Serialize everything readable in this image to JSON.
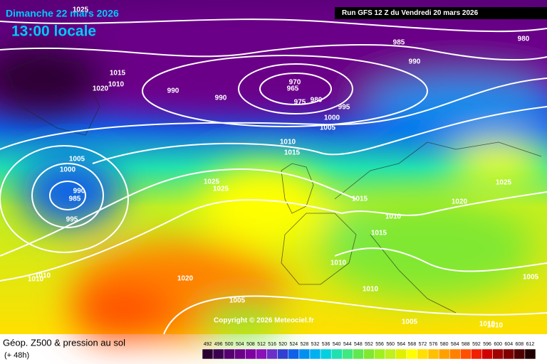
{
  "header": {
    "date": "Dimanche 22 mars 2026",
    "time": "13:00 locale",
    "run": "Run GFS 12 Z du Vendredi 20 mars 2026"
  },
  "map": {
    "isobar_labels": [
      1025,
      985,
      980,
      990,
      1015,
      1010,
      1020,
      990,
      990,
      970,
      965,
      980,
      975,
      995,
      1000,
      1005,
      1010,
      1015,
      1005,
      1000,
      990,
      985,
      995,
      1025,
      1025,
      1025,
      1015,
      1020,
      1010,
      1015,
      1010,
      1010,
      1010,
      1020,
      1010,
      1005,
      1005,
      1005,
      1010,
      1010
    ]
  },
  "copyright": "Copyright © 2026 Meteociel.fr",
  "legend": {
    "title": "Géop. Z500 & pression au sol",
    "lead": "(+ 48h)",
    "scale": [
      492,
      496,
      500,
      504,
      508,
      512,
      516,
      520,
      524,
      528,
      532,
      536,
      540,
      544,
      548,
      552,
      556,
      560,
      564,
      568,
      572,
      576,
      580,
      584,
      588,
      592,
      596,
      600,
      604,
      608,
      612
    ],
    "colors": [
      "#2a0030",
      "#3c0050",
      "#55006e",
      "#6a0087",
      "#7d00a0",
      "#8a10b8",
      "#6a30c8",
      "#3040d0",
      "#1060e8",
      "#0090f0",
      "#00b0f0",
      "#00d0e0",
      "#20e0b0",
      "#40e880",
      "#60e850",
      "#80e830",
      "#a0f020",
      "#c0f020",
      "#e0f000",
      "#ffff00",
      "#ffe000",
      "#ffc000",
      "#ffa000",
      "#ff8000",
      "#ff5000",
      "#f02000",
      "#d00000",
      "#a00000",
      "#800000",
      "#500000",
      "#200000"
    ]
  }
}
